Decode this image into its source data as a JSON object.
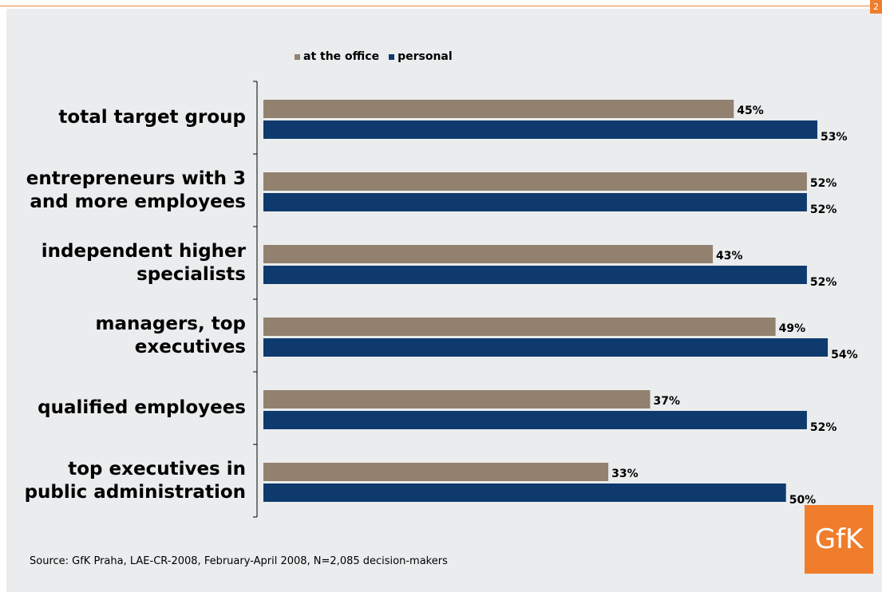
{
  "page_number": "2",
  "legend": [
    {
      "name": "at the office",
      "color": "#938170"
    },
    {
      "name": "personal",
      "color": "#0e3a6e"
    }
  ],
  "chart_data": {
    "type": "bar",
    "orientation": "horizontal",
    "categories": [
      "total target group",
      "entrepreneurs with 3\nand more employees",
      "independent higher\nspecialists",
      "managers, top\nexecutives",
      "qualified employees",
      "top executives in\npublic administration"
    ],
    "series": [
      {
        "name": "at the office",
        "color": "#938170",
        "values": [
          45,
          52,
          43,
          49,
          37,
          33
        ],
        "labels": [
          "45%",
          "52%",
          "43%",
          "49%",
          "37%",
          "33%"
        ]
      },
      {
        "name": "personal",
        "color": "#0e3a6e",
        "values": [
          53,
          52,
          52,
          54,
          52,
          50
        ],
        "labels": [
          "53%",
          "52%",
          "52%",
          "54%",
          "52%",
          "50%"
        ]
      }
    ],
    "xlim": [
      0,
      60
    ],
    "legend_position": "top",
    "grid": false
  },
  "source": "Source: GfK Praha, LAE-CR-2008, February-April 2008, N=2,085 decision-makers",
  "logo_text": "GfK"
}
